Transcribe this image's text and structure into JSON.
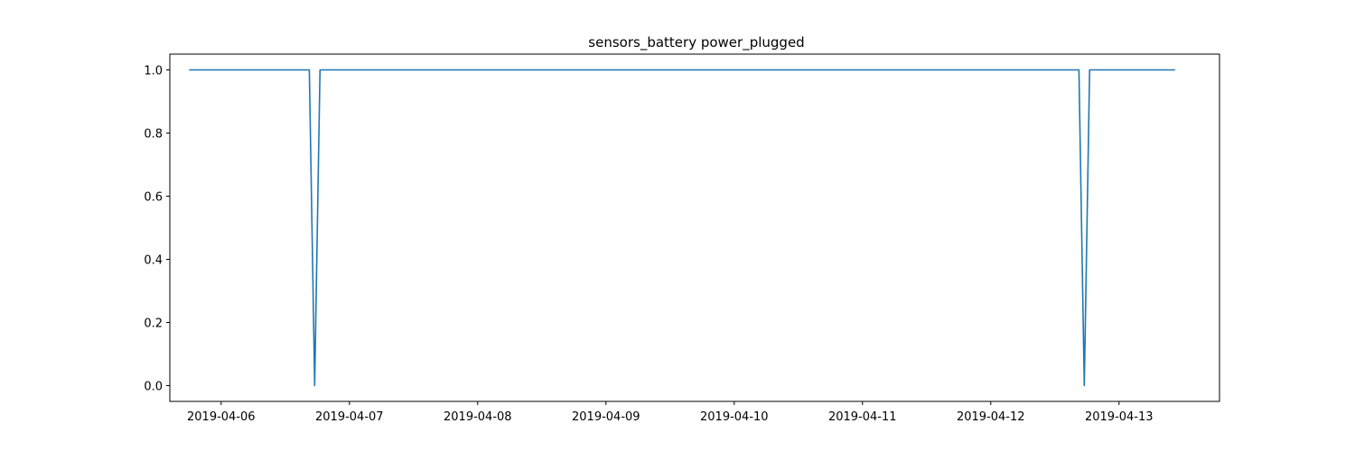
{
  "chart_data": {
    "type": "line",
    "title": "sensors_battery power_plugged",
    "xlabel": "",
    "ylabel": "",
    "x_tick_labels": [
      "2019-04-06",
      "2019-04-07",
      "2019-04-08",
      "2019-04-09",
      "2019-04-10",
      "2019-04-11",
      "2019-04-12",
      "2019-04-13"
    ],
    "y_tick_labels": [
      "0.0",
      "0.2",
      "0.4",
      "0.6",
      "0.8",
      "1.0"
    ],
    "xlim": [
      "2019-04-05 14:24",
      "2019-04-13 18:48"
    ],
    "ylim": [
      -0.05,
      1.05
    ],
    "grid": false,
    "legend": false,
    "series": [
      {
        "color": "#1f77b4",
        "x": [
          "2019-04-05 18:00",
          "2019-04-06 16:30",
          "2019-04-06 17:30",
          "2019-04-06 18:30",
          "2019-04-12 16:30",
          "2019-04-12 17:30",
          "2019-04-12 18:30",
          "2019-04-13 10:30"
        ],
        "values": [
          1,
          1,
          0,
          1,
          1,
          0,
          1,
          1
        ]
      }
    ]
  }
}
